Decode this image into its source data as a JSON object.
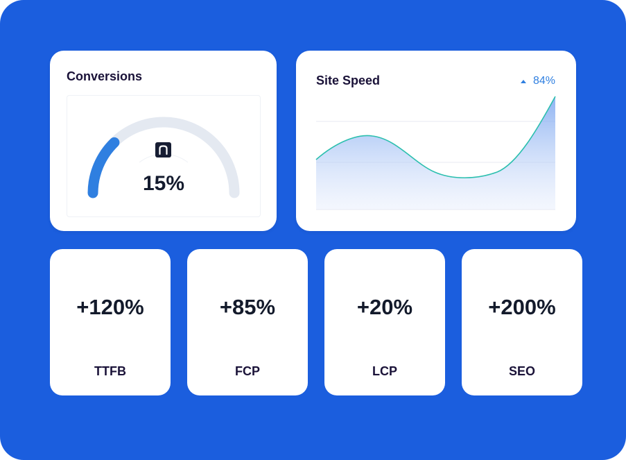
{
  "conversions": {
    "title": "Conversions",
    "value": "15%",
    "fraction": 0.15,
    "icon": "n-logo-icon"
  },
  "site_speed": {
    "title": "Site Speed",
    "trend_value": "84%",
    "trend_icon": "triangle-up-icon"
  },
  "metrics": [
    {
      "value": "+120%",
      "label": "TTFB"
    },
    {
      "value": "+85%",
      "label": "FCP"
    },
    {
      "value": "+20%",
      "label": "LCP"
    },
    {
      "value": "+200%",
      "label": "SEO"
    }
  ],
  "colors": {
    "background": "#1b5ede",
    "gauge_fill": "#2f7fe0",
    "gauge_track": "#e4e9f1",
    "line": "#2bbfae",
    "area": "#7ba6f0"
  }
}
